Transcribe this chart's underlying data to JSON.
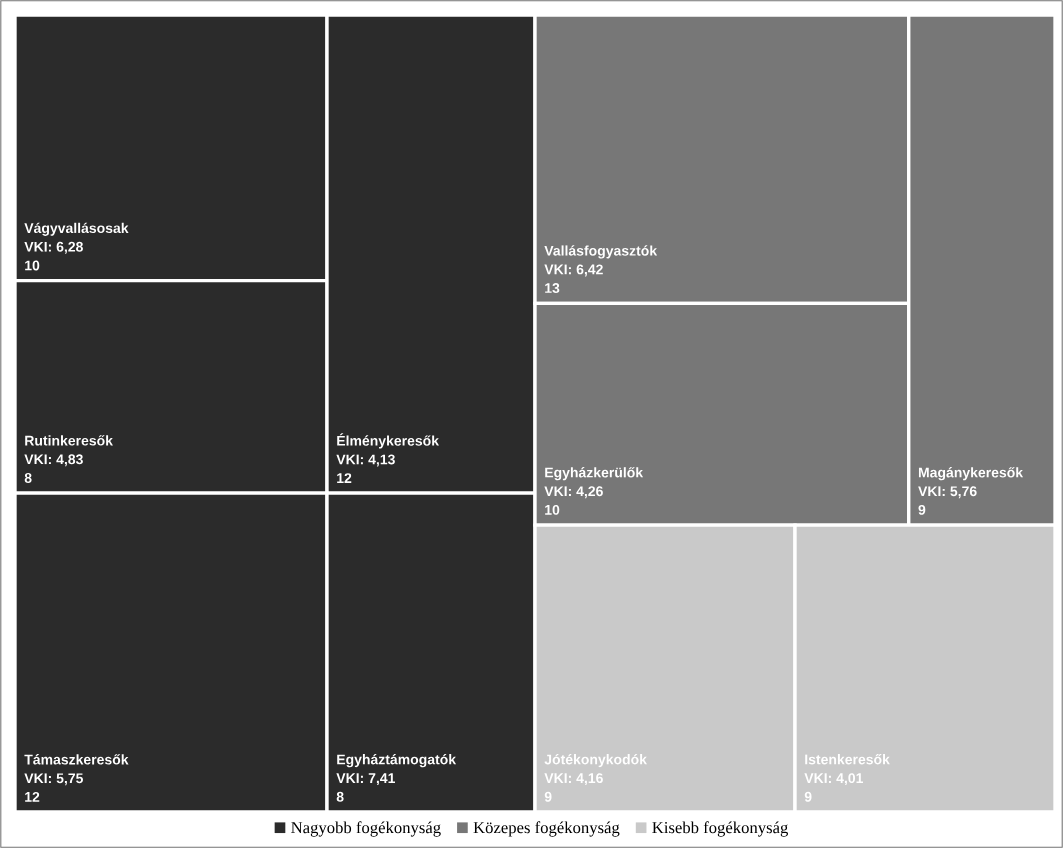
{
  "chart_data": {
    "type": "other",
    "legend": "bottom",
    "data_labels": true,
    "categories": [
      "Vágyvallásosak",
      "Rutinkeresők",
      "Élménykeresők",
      "Támaszkeresők",
      "Egyháztámogatók",
      "Vallásfogyasztók",
      "Egyházkerülők",
      "Magánykeresők",
      "Jótékonykodók",
      "Istenkeresők"
    ],
    "annotations": [
      "VKI: 6,28",
      "VKI: 4,83",
      "VKI: 4,13",
      "VKI: 5,75",
      "VKI: 7,41",
      "VKI: 6,42",
      "VKI: 4,26",
      "VKI: 5,76",
      "VKI: 4,16",
      "VKI: 4,01"
    ],
    "series": [
      {
        "name": "Nagyobb fogékonyság",
        "color": "#2b2b2b",
        "values": [
          10,
          8,
          12,
          12,
          8,
          null,
          null,
          null,
          null,
          null
        ]
      },
      {
        "name": "Közepes fogékonyság",
        "color": "#777777",
        "values": [
          null,
          null,
          null,
          null,
          null,
          13,
          10,
          9,
          null,
          null
        ]
      },
      {
        "name": "Kisebb fogékonyság",
        "color": "#c9c9c9",
        "values": [
          null,
          null,
          null,
          null,
          null,
          null,
          null,
          null,
          9,
          9
        ]
      }
    ]
  }
}
